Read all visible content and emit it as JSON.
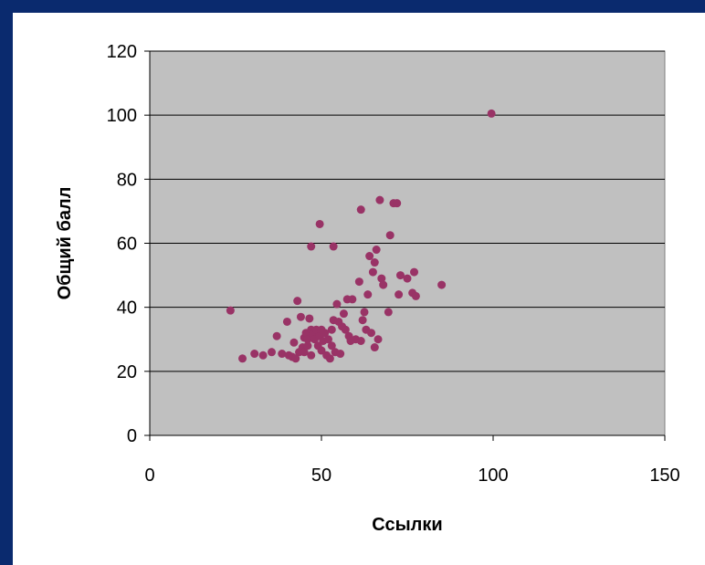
{
  "chart_data": {
    "type": "scatter",
    "xlabel": "Ссылки",
    "ylabel": "Общий балл",
    "xlim": [
      0,
      150
    ],
    "ylim": [
      0,
      120
    ],
    "xticks": [
      "0",
      "50",
      "100",
      "150"
    ],
    "yticks": [
      "0",
      "20",
      "40",
      "60",
      "80",
      "100",
      "120"
    ],
    "grid": "horizontal",
    "colors": {
      "plot_bg": "#c0c0c0",
      "point": "#993366",
      "grid": "#000000",
      "frame": "#0a2a6e"
    },
    "points": [
      [
        23.5,
        39
      ],
      [
        27,
        24
      ],
      [
        30.5,
        25.5
      ],
      [
        33,
        25
      ],
      [
        35.5,
        26
      ],
      [
        37,
        31
      ],
      [
        38.5,
        25.5
      ],
      [
        40,
        35.5
      ],
      [
        40.5,
        25
      ],
      [
        41.5,
        24.5
      ],
      [
        42,
        29
      ],
      [
        42.5,
        24
      ],
      [
        43,
        42
      ],
      [
        43.5,
        26
      ],
      [
        44,
        37
      ],
      [
        44.5,
        27.5
      ],
      [
        45,
        30.5
      ],
      [
        45,
        26
      ],
      [
        45.5,
        32
      ],
      [
        46,
        28
      ],
      [
        46,
        30
      ],
      [
        46.5,
        36.5
      ],
      [
        47,
        33
      ],
      [
        47,
        25
      ],
      [
        47.5,
        31.5
      ],
      [
        48,
        30
      ],
      [
        48.5,
        33
      ],
      [
        49,
        28
      ],
      [
        49.5,
        31
      ],
      [
        50,
        33
      ],
      [
        50,
        26.5
      ],
      [
        50.5,
        29.5
      ],
      [
        51,
        32
      ],
      [
        51.5,
        25
      ],
      [
        52,
        30
      ],
      [
        52.5,
        24
      ],
      [
        53,
        33
      ],
      [
        53,
        28
      ],
      [
        53.5,
        36
      ],
      [
        54,
        26
      ],
      [
        54.5,
        41
      ],
      [
        55,
        35.5
      ],
      [
        55.5,
        25.5
      ],
      [
        56,
        34
      ],
      [
        56.5,
        38
      ],
      [
        57,
        33
      ],
      [
        57.5,
        42.5
      ],
      [
        58,
        31
      ],
      [
        58.5,
        29.5
      ],
      [
        59,
        42.5
      ],
      [
        60,
        30
      ],
      [
        61,
        48
      ],
      [
        61.5,
        29.5
      ],
      [
        62,
        36
      ],
      [
        62.5,
        38.5
      ],
      [
        63,
        33
      ],
      [
        63.5,
        44
      ],
      [
        64,
        56
      ],
      [
        64.5,
        32
      ],
      [
        65,
        51
      ],
      [
        65.5,
        54
      ],
      [
        65.5,
        27.5
      ],
      [
        66,
        58
      ],
      [
        66.5,
        30
      ],
      [
        67,
        73.5
      ],
      [
        67.5,
        49
      ],
      [
        68,
        47
      ],
      [
        69.5,
        38.5
      ],
      [
        70,
        62.5
      ],
      [
        71,
        72.5
      ],
      [
        72,
        72.5
      ],
      [
        72.5,
        44
      ],
      [
        73,
        50
      ],
      [
        75,
        49
      ],
      [
        76.5,
        44.5
      ],
      [
        77,
        51
      ],
      [
        77.5,
        43.5
      ],
      [
        85,
        47
      ],
      [
        49.5,
        66
      ],
      [
        53.5,
        59
      ],
      [
        47,
        59
      ],
      [
        61.5,
        70.5
      ],
      [
        99.5,
        100.5
      ]
    ]
  }
}
